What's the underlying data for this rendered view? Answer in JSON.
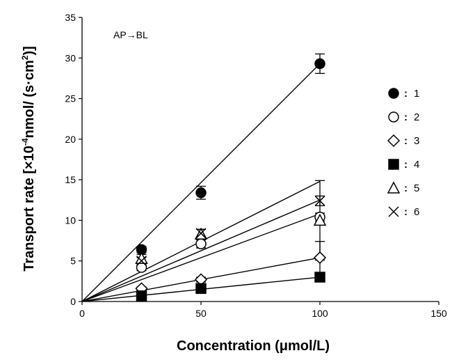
{
  "chart_data": {
    "type": "scatter",
    "annotation": "AP→BL",
    "xlabel": "Concentration (μmol/L)",
    "ylabel_main": "Transport rate [×10",
    "ylabel_sup1": "-4",
    "ylabel_mid": "nmol/ (s·cm",
    "ylabel_sup2": "2",
    "ylabel_end": ")]",
    "xlim": [
      0,
      150
    ],
    "ylim": [
      0,
      35
    ],
    "xticks": [
      "0",
      "50",
      "100",
      "150"
    ],
    "yticks": [
      "0",
      "5",
      "10",
      "15",
      "20",
      "25",
      "30",
      "35"
    ],
    "x": [
      25,
      50,
      100
    ],
    "legend_position": "right",
    "series": [
      {
        "name": "1",
        "marker": "filled-circle",
        "values": [
          6.4,
          13.4,
          29.3
        ],
        "errors": [
          0.4,
          0.8,
          1.2
        ],
        "fit_end": 29.3
      },
      {
        "name": "2",
        "marker": "open-circle",
        "values": [
          4.2,
          7.1,
          10.4
        ],
        "errors": [
          0.4,
          0.5,
          0.5
        ],
        "fit_end": 10.8
      },
      {
        "name": "3",
        "marker": "open-diamond",
        "values": [
          1.6,
          2.7,
          5.4
        ],
        "errors": [
          0.2,
          0.3,
          2.0
        ],
        "fit_end": 5.4
      },
      {
        "name": "4",
        "marker": "filled-square",
        "values": [
          0.7,
          1.6,
          3.0
        ],
        "errors": [
          0.1,
          0.2,
          0.2
        ],
        "fit_end": 3.0
      },
      {
        "name": "5",
        "marker": "open-triangle",
        "values": [
          5.3,
          8.3,
          10.0
        ],
        "errors": [
          0.5,
          0.6,
          4.9
        ],
        "fit_end": 14.8
      },
      {
        "name": "6",
        "marker": "x-cross",
        "values": [
          5.0,
          8.4,
          12.4
        ],
        "errors": [
          0.4,
          0.5,
          0.6
        ],
        "fit_end": 12.5
      }
    ]
  }
}
